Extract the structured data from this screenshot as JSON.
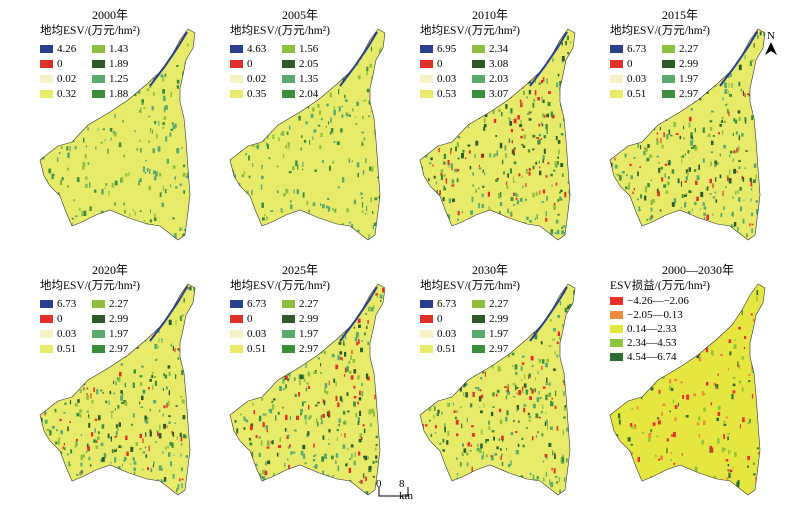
{
  "panels": [
    {
      "title": "2000年",
      "legend_title": "地均ESV/(万元/hm²)",
      "entries": [
        {
          "label": "4.26",
          "color": "#2b3f8f"
        },
        {
          "label": "1.43",
          "color": "#8fbf3f"
        },
        {
          "label": "0",
          "color": "#e0302a"
        },
        {
          "label": "1.89",
          "color": "#2d5a27"
        },
        {
          "label": "0.02",
          "color": "#f7f1c6"
        },
        {
          "label": "1.25",
          "color": "#5aaa6e"
        },
        {
          "label": "0.32",
          "color": "#e8ea6a"
        },
        {
          "label": "1.88",
          "color": "#3c8f3a"
        }
      ]
    },
    {
      "title": "2005年",
      "legend_title": "地均ESV/(万元/hm²)",
      "entries": [
        {
          "label": "4.63",
          "color": "#2b3f8f"
        },
        {
          "label": "1.56",
          "color": "#8fbf3f"
        },
        {
          "label": "0",
          "color": "#e0302a"
        },
        {
          "label": "2.05",
          "color": "#2d5a27"
        },
        {
          "label": "0.02",
          "color": "#f7f1c6"
        },
        {
          "label": "1.35",
          "color": "#5aaa6e"
        },
        {
          "label": "0.35",
          "color": "#e8ea6a"
        },
        {
          "label": "2.04",
          "color": "#3c8f3a"
        }
      ]
    },
    {
      "title": "2010年",
      "legend_title": "地均ESV/(万元/hm²)",
      "entries": [
        {
          "label": "6.95",
          "color": "#2b3f8f"
        },
        {
          "label": "2.34",
          "color": "#8fbf3f"
        },
        {
          "label": "0",
          "color": "#e0302a"
        },
        {
          "label": "3.08",
          "color": "#2d5a27"
        },
        {
          "label": "0.03",
          "color": "#f7f1c6"
        },
        {
          "label": "2.03",
          "color": "#5aaa6e"
        },
        {
          "label": "0.53",
          "color": "#e8ea6a"
        },
        {
          "label": "3.07",
          "color": "#3c8f3a"
        }
      ]
    },
    {
      "title": "2015年",
      "legend_title": "地均ESV/(万元/hm²)",
      "entries": [
        {
          "label": "6.73",
          "color": "#2b3f8f"
        },
        {
          "label": "2.27",
          "color": "#8fbf3f"
        },
        {
          "label": "0",
          "color": "#e0302a"
        },
        {
          "label": "2.99",
          "color": "#2d5a27"
        },
        {
          "label": "0.03",
          "color": "#f7f1c6"
        },
        {
          "label": "1.97",
          "color": "#5aaa6e"
        },
        {
          "label": "0.51",
          "color": "#e8ea6a"
        },
        {
          "label": "2.97",
          "color": "#3c8f3a"
        }
      ]
    },
    {
      "title": "2020年",
      "legend_title": "地均ESV/(万元/hm²)",
      "entries": [
        {
          "label": "6.73",
          "color": "#2b3f8f"
        },
        {
          "label": "2.27",
          "color": "#8fbf3f"
        },
        {
          "label": "0",
          "color": "#e0302a"
        },
        {
          "label": "2.99",
          "color": "#2d5a27"
        },
        {
          "label": "0.03",
          "color": "#f7f1c6"
        },
        {
          "label": "1.97",
          "color": "#5aaa6e"
        },
        {
          "label": "0.51",
          "color": "#e8ea6a"
        },
        {
          "label": "2.97",
          "color": "#3c8f3a"
        }
      ]
    },
    {
      "title": "2025年",
      "legend_title": "地均ESV/(万元/hm²)",
      "entries": [
        {
          "label": "6.73",
          "color": "#2b3f8f"
        },
        {
          "label": "2.27",
          "color": "#8fbf3f"
        },
        {
          "label": "0",
          "color": "#e0302a"
        },
        {
          "label": "2.99",
          "color": "#2d5a27"
        },
        {
          "label": "0.03",
          "color": "#f7f1c6"
        },
        {
          "label": "1.97",
          "color": "#5aaa6e"
        },
        {
          "label": "0.51",
          "color": "#e8ea6a"
        },
        {
          "label": "2.97",
          "color": "#3c8f3a"
        }
      ]
    },
    {
      "title": "2030年",
      "legend_title": "地均ESV/(万元/hm²)",
      "entries": [
        {
          "label": "6.73",
          "color": "#2b3f8f"
        },
        {
          "label": "2.27",
          "color": "#8fbf3f"
        },
        {
          "label": "0",
          "color": "#e0302a"
        },
        {
          "label": "2.99",
          "color": "#2d5a27"
        },
        {
          "label": "0.03",
          "color": "#f7f1c6"
        },
        {
          "label": "1.97",
          "color": "#5aaa6e"
        },
        {
          "label": "0.51",
          "color": "#e8ea6a"
        },
        {
          "label": "2.97",
          "color": "#3c8f3a"
        }
      ]
    },
    {
      "title": "2000—2030年",
      "legend_title": "ESV损益/(万元/hm²)",
      "entries": [
        {
          "label": "−4.26—−2.06",
          "color": "#e8312a"
        },
        {
          "label": "−2.05—0.13",
          "color": "#f08a3c"
        },
        {
          "label": "0.14—2.33",
          "color": "#e6e640"
        },
        {
          "label": "2.34—4.53",
          "color": "#8cc43c"
        },
        {
          "label": "4.54—6.74",
          "color": "#2e6b2e"
        }
      ]
    }
  ],
  "scale_bar": {
    "zero": "0",
    "distance": "8 km"
  },
  "north_arrow": {
    "label": "N",
    "icon": "north-arrow-icon"
  }
}
